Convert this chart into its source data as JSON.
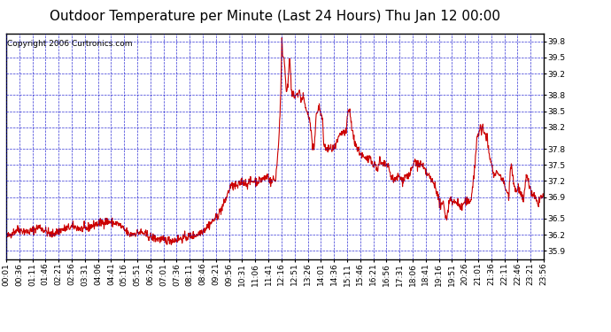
{
  "title": "Outdoor Temperature per Minute (Last 24 Hours) Thu Jan 12 00:00",
  "copyright": "Copyright 2006 Curtronics.com",
  "ylabel_ticks": [
    35.9,
    36.2,
    36.5,
    36.9,
    37.2,
    37.5,
    37.8,
    38.2,
    38.5,
    38.8,
    39.2,
    39.5,
    39.8
  ],
  "ylim": [
    35.75,
    39.95
  ],
  "background_color": "#ffffff",
  "plot_bg_color": "#ffffff",
  "line_color": "#cc0000",
  "grid_color": "#0000cc",
  "border_color": "#000000",
  "title_fontsize": 11,
  "copyright_fontsize": 6.5,
  "tick_labelsize": 6.5,
  "x_tick_labels": [
    "00:01",
    "00:36",
    "01:11",
    "01:46",
    "02:21",
    "02:56",
    "03:31",
    "04:06",
    "04:41",
    "05:16",
    "05:51",
    "06:26",
    "07:01",
    "07:36",
    "08:11",
    "08:46",
    "09:21",
    "09:56",
    "10:31",
    "11:06",
    "11:41",
    "12:16",
    "12:51",
    "13:26",
    "14:01",
    "14:36",
    "15:11",
    "15:46",
    "16:21",
    "16:56",
    "17:31",
    "18:06",
    "18:41",
    "19:16",
    "19:51",
    "20:26",
    "21:01",
    "21:36",
    "22:11",
    "22:46",
    "23:21",
    "23:56"
  ]
}
